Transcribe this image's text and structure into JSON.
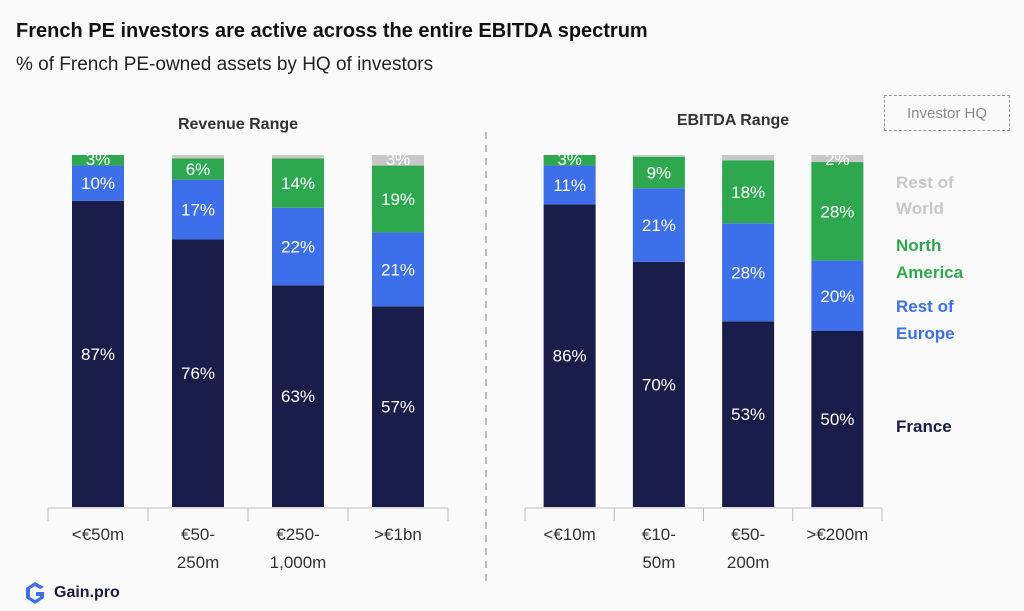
{
  "header": {
    "title": "French PE investors are active across the entire EBITDA spectrum",
    "subtitle": "% of French PE-owned assets by HQ of investors"
  },
  "legend": {
    "title": "Investor HQ",
    "items": [
      {
        "key": "rest_of_world",
        "line1": "Rest of",
        "line2": "World",
        "color": "#c8c8c8"
      },
      {
        "key": "north_america",
        "line1": "North",
        "line2": "America",
        "color": "#2ea84f"
      },
      {
        "key": "rest_of_europe",
        "line1": "Rest of",
        "line2": "Europe",
        "color": "#3d6fea"
      },
      {
        "key": "france",
        "line1": "France",
        "line2": "",
        "color": "#1a1c4a"
      }
    ]
  },
  "chart_data": [
    {
      "type": "bar",
      "stacked": true,
      "title": "Revenue Range",
      "categories": [
        [
          "<€50m"
        ],
        [
          "€50-",
          "250m"
        ],
        [
          "€250-",
          "1,000m"
        ],
        [
          ">€1bn"
        ]
      ],
      "ylim": [
        0,
        100
      ],
      "series": [
        {
          "name": "France",
          "values": [
            87,
            76,
            63,
            57
          ],
          "labels": [
            "87%",
            "76%",
            "63%",
            "57%"
          ],
          "color": "#1a1c4a"
        },
        {
          "name": "Rest of Europe",
          "values": [
            10,
            17,
            22,
            21
          ],
          "labels": [
            "10%",
            "17%",
            "22%",
            "21%"
          ],
          "color": "#3d6fea"
        },
        {
          "name": "North America",
          "values": [
            3,
            6,
            14,
            19
          ],
          "labels": [
            "3%",
            "6%",
            "14%",
            "19%"
          ],
          "color": "#2ea84f"
        },
        {
          "name": "Rest of World",
          "values": [
            0,
            1,
            1,
            3
          ],
          "labels": [
            "",
            "",
            "",
            "3%"
          ],
          "color": "#c8c8c8"
        }
      ]
    },
    {
      "type": "bar",
      "stacked": true,
      "title": "EBITDA Range",
      "categories": [
        [
          "<€10m"
        ],
        [
          "€10-",
          "50m"
        ],
        [
          "€50-",
          "200m"
        ],
        [
          ">€200m"
        ]
      ],
      "ylim": [
        0,
        100
      ],
      "series": [
        {
          "name": "France",
          "values": [
            86,
            70,
            53,
            50
          ],
          "labels": [
            "86%",
            "70%",
            "53%",
            "50%"
          ],
          "color": "#1a1c4a"
        },
        {
          "name": "Rest of Europe",
          "values": [
            11,
            21,
            28,
            20
          ],
          "labels": [
            "11%",
            "21%",
            "28%",
            "20%"
          ],
          "color": "#3d6fea"
        },
        {
          "name": "North America",
          "values": [
            3,
            9,
            18,
            28
          ],
          "labels": [
            "3%",
            "9%",
            "18%",
            "28%"
          ],
          "color": "#2ea84f"
        },
        {
          "name": "Rest of World",
          "values": [
            0,
            0.5,
            1.5,
            2
          ],
          "labels": [
            "",
            "",
            "",
            "2%"
          ],
          "color": "#c8c8c8"
        }
      ]
    }
  ],
  "footer": {
    "brand": "Gain.pro",
    "logo_icon": "gain-pro-logo-icon",
    "logo_color": "#3d6fea"
  }
}
